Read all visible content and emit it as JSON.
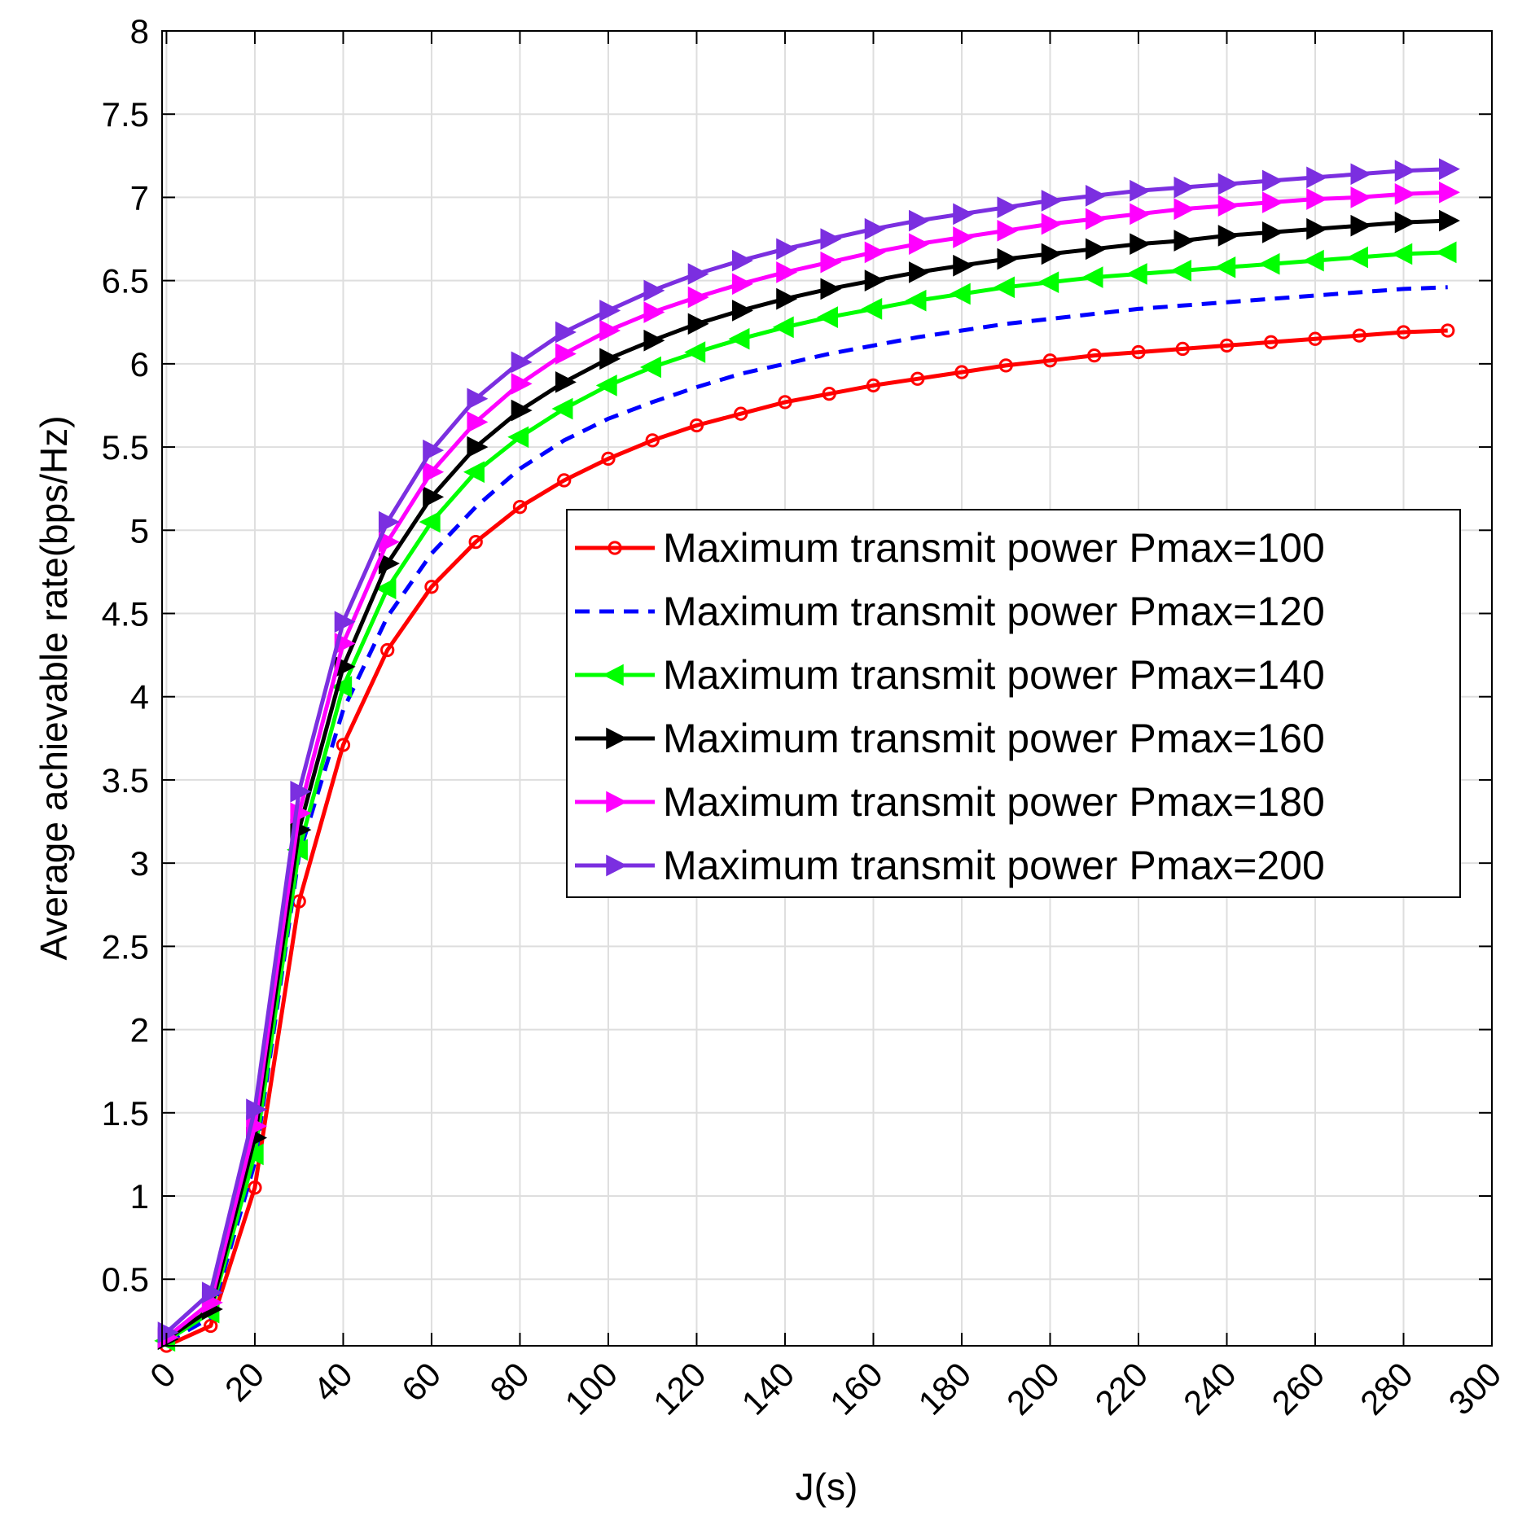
{
  "chart_data": {
    "type": "line",
    "title": "",
    "xlabel": "J(s)",
    "ylabel": "Average achievable rate(bps/Hz)",
    "xlim": [
      -1,
      300
    ],
    "ylim": [
      0.1,
      8
    ],
    "grid": true,
    "legend_position": "right-center",
    "x_ticks": [
      "0",
      "20",
      "40",
      "60",
      "80",
      "100",
      "120",
      "140",
      "160",
      "180",
      "200",
      "220",
      "240",
      "260",
      "280",
      "300"
    ],
    "y_ticks": [
      "0.5",
      "1",
      "1.5",
      "2",
      "2.5",
      "3",
      "3.5",
      "4",
      "4.5",
      "5",
      "5.5",
      "6",
      "6.5",
      "7",
      "7.5",
      "8"
    ],
    "x": [
      0,
      10,
      20,
      30,
      40,
      50,
      60,
      70,
      80,
      90,
      100,
      110,
      120,
      130,
      140,
      150,
      160,
      170,
      180,
      190,
      200,
      210,
      220,
      230,
      240,
      250,
      260,
      270,
      280,
      290
    ],
    "series": [
      {
        "name": "Maximum transmit power Pmax=100",
        "color": "#ff0000",
        "marker": "circle",
        "dash": false,
        "values": [
          0.1,
          0.22,
          1.05,
          2.77,
          3.71,
          4.28,
          4.66,
          4.93,
          5.14,
          5.3,
          5.43,
          5.54,
          5.63,
          5.7,
          5.77,
          5.82,
          5.87,
          5.91,
          5.95,
          5.99,
          6.02,
          6.05,
          6.07,
          6.09,
          6.11,
          6.13,
          6.15,
          6.17,
          6.19,
          6.2
        ]
      },
      {
        "name": "Maximum transmit power Pmax=120",
        "color": "#0000ff",
        "marker": "none",
        "dash": true,
        "values": [
          0.12,
          0.27,
          1.2,
          3.05,
          3.92,
          4.48,
          4.86,
          5.14,
          5.37,
          5.54,
          5.67,
          5.77,
          5.86,
          5.94,
          6.0,
          6.06,
          6.11,
          6.16,
          6.2,
          6.24,
          6.27,
          6.3,
          6.33,
          6.35,
          6.37,
          6.39,
          6.41,
          6.43,
          6.45,
          6.46
        ]
      },
      {
        "name": "Maximum transmit power Pmax=140",
        "color": "#00ff00",
        "marker": "triangle-left",
        "dash": false,
        "values": [
          0.13,
          0.3,
          1.25,
          3.08,
          4.06,
          4.65,
          5.05,
          5.35,
          5.56,
          5.73,
          5.87,
          5.98,
          6.07,
          6.15,
          6.22,
          6.28,
          6.33,
          6.38,
          6.42,
          6.46,
          6.49,
          6.52,
          6.54,
          6.56,
          6.58,
          6.6,
          6.62,
          6.64,
          6.66,
          6.67
        ]
      },
      {
        "name": "Maximum transmit power Pmax=160",
        "color": "#000000",
        "marker": "triangle-right",
        "dash": false,
        "values": [
          0.14,
          0.32,
          1.35,
          3.2,
          4.18,
          4.8,
          5.2,
          5.5,
          5.72,
          5.89,
          6.03,
          6.14,
          6.24,
          6.32,
          6.39,
          6.45,
          6.5,
          6.55,
          6.59,
          6.63,
          6.66,
          6.69,
          6.72,
          6.74,
          6.77,
          6.79,
          6.81,
          6.83,
          6.85,
          6.86
        ]
      },
      {
        "name": "Maximum transmit power Pmax=180",
        "color": "#ff00ff",
        "marker": "triangle-right",
        "dash": false,
        "values": [
          0.15,
          0.36,
          1.42,
          3.3,
          4.32,
          4.93,
          5.35,
          5.65,
          5.88,
          6.06,
          6.2,
          6.31,
          6.4,
          6.48,
          6.55,
          6.61,
          6.67,
          6.72,
          6.76,
          6.8,
          6.84,
          6.87,
          6.9,
          6.93,
          6.95,
          6.97,
          6.99,
          7.0,
          7.02,
          7.03
        ]
      },
      {
        "name": "Maximum transmit power Pmax=200",
        "color": "#7b2fe0",
        "marker": "triangle-right",
        "dash": false,
        "values": [
          0.18,
          0.42,
          1.52,
          3.43,
          4.45,
          5.05,
          5.48,
          5.79,
          6.01,
          6.19,
          6.32,
          6.44,
          6.54,
          6.62,
          6.69,
          6.75,
          6.81,
          6.86,
          6.9,
          6.94,
          6.98,
          7.01,
          7.04,
          7.06,
          7.08,
          7.1,
          7.12,
          7.14,
          7.16,
          7.17
        ]
      }
    ]
  }
}
